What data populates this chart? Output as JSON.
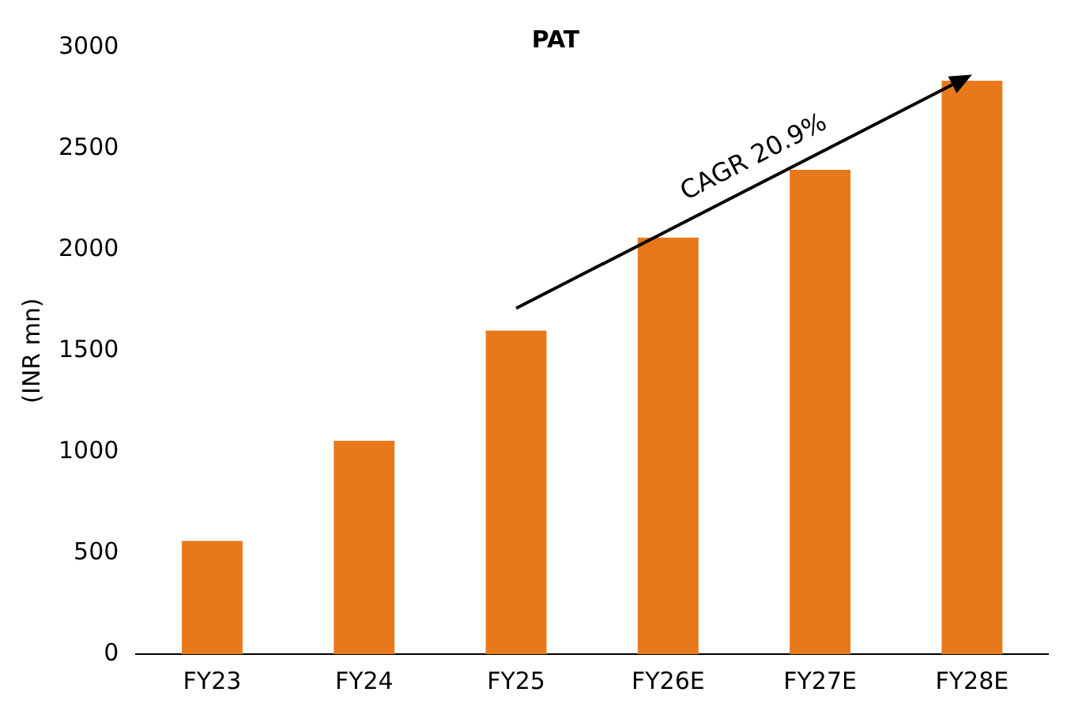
{
  "chart_data": {
    "type": "bar",
    "title": "PAT",
    "ylabel": "(INR mn)",
    "categories": [
      "FY23",
      "FY24",
      "FY25",
      "FY26E",
      "FY27E",
      "FY28E"
    ],
    "values": [
      560,
      1055,
      1600,
      2060,
      2395,
      2835
    ],
    "color": "#e8791b",
    "ylim": [
      0,
      3000
    ],
    "yticks": [
      0,
      500,
      1000,
      1500,
      2000,
      2500,
      3000
    ],
    "grid": false,
    "annotations": [
      "CAGR 20.9%"
    ]
  }
}
